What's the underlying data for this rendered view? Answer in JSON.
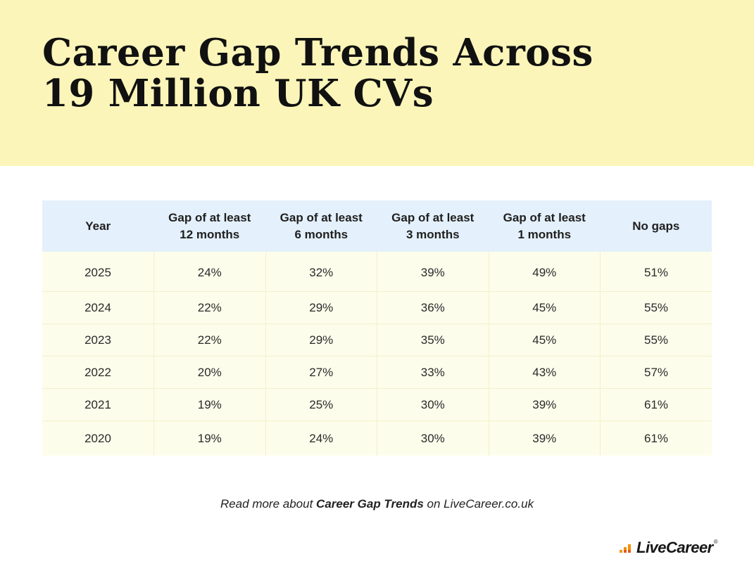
{
  "header": {
    "title_line1": "Career Gap Trends Across",
    "title_line2": "19 Million UK CVs",
    "background": "#fbf5b9"
  },
  "chart_data": {
    "type": "table",
    "title": "Career Gap Trends Across 19 Million UK CVs",
    "columns": [
      [
        "Year"
      ],
      [
        "Gap of at least",
        "12 months"
      ],
      [
        "Gap of at least",
        "6 months"
      ],
      [
        "Gap of at least",
        "3 months"
      ],
      [
        "Gap of at least",
        "1 months"
      ],
      [
        "No gaps"
      ]
    ],
    "rows": [
      [
        "2025",
        "24%",
        "32%",
        "39%",
        "49%",
        "51%"
      ],
      [
        "2024",
        "22%",
        "29%",
        "36%",
        "45%",
        "55%"
      ],
      [
        "2023",
        "22%",
        "29%",
        "35%",
        "45%",
        "55%"
      ],
      [
        "2022",
        "20%",
        "27%",
        "33%",
        "43%",
        "57%"
      ],
      [
        "2021",
        "19%",
        "25%",
        "30%",
        "39%",
        "61%"
      ],
      [
        "2020",
        "19%",
        "24%",
        "30%",
        "39%",
        "61%"
      ]
    ],
    "header_color": "#e4f0fb",
    "row_color": "#fdfdec"
  },
  "footer": {
    "prefix": "Read more about ",
    "emphasis": "Career Gap Trends",
    "suffix": " on LiveCareer.co.uk"
  },
  "logo": {
    "text": "LiveCareer",
    "reg": "®",
    "icon": "bar-chart-icon",
    "accent_color": "#f39200"
  }
}
